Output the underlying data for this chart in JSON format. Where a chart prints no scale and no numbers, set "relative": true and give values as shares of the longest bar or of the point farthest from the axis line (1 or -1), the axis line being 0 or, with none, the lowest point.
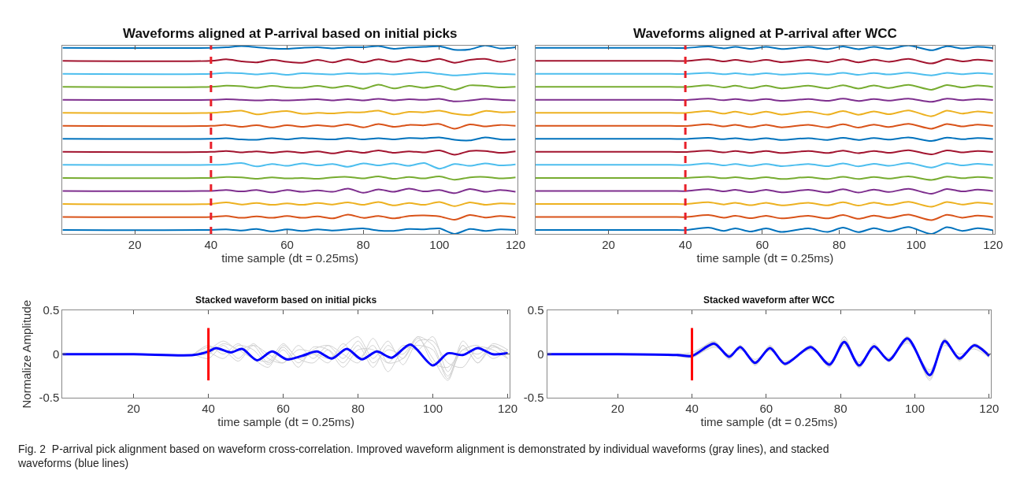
{
  "chart_data": [
    {
      "type": "line",
      "title": "Waveforms aligned at P-arrival based on initial picks",
      "xlabel": "time sample (dt = 0.25ms)",
      "xlim": [
        1,
        120.5
      ],
      "xticks": [
        20,
        40,
        60,
        80,
        100,
        120
      ],
      "relative": true,
      "tick_labels": "x",
      "ref_lines": [
        {
          "axis": "x",
          "value": 40,
          "color": "#e8202a",
          "line_style": "dashed"
        }
      ],
      "x": [
        1,
        40,
        44,
        48,
        52,
        56,
        60,
        64,
        68,
        72,
        76,
        80,
        84,
        88,
        92,
        96,
        100,
        104,
        108,
        112,
        116,
        120
      ],
      "series": [
        {
          "color": "#0072bd",
          "values": [
            0.987,
            0.987,
            0.99,
            0.996,
            0.99,
            0.984,
            0.982,
            0.987,
            0.99,
            0.984,
            0.99,
            0.99,
            0.996,
            0.982,
            0.989,
            0.992,
            0.995,
            0.977,
            0.979,
            1.0,
            0.984,
            0.99
          ]
        },
        {
          "color": "#a2142f",
          "values": [
            0.918,
            0.918,
            0.926,
            0.915,
            0.91,
            0.923,
            0.913,
            0.908,
            0.923,
            0.91,
            0.926,
            0.91,
            0.926,
            0.913,
            0.926,
            0.915,
            0.928,
            0.908,
            0.923,
            0.928,
            0.913,
            0.926
          ]
        },
        {
          "color": "#4dbeee",
          "values": [
            0.849,
            0.849,
            0.854,
            0.852,
            0.846,
            0.852,
            0.844,
            0.852,
            0.849,
            0.846,
            0.852,
            0.849,
            0.851,
            0.846,
            0.852,
            0.857,
            0.849,
            0.841,
            0.846,
            0.852,
            0.849,
            0.846
          ]
        },
        {
          "color": "#77ac30",
          "values": [
            0.78,
            0.78,
            0.786,
            0.783,
            0.775,
            0.785,
            0.777,
            0.775,
            0.785,
            0.775,
            0.785,
            0.77,
            0.792,
            0.772,
            0.785,
            0.775,
            0.785,
            0.765,
            0.788,
            0.785,
            0.777,
            0.78
          ]
        },
        {
          "color": "#7e2f8e",
          "values": [
            0.711,
            0.711,
            0.714,
            0.711,
            0.708,
            0.711,
            0.708,
            0.711,
            0.714,
            0.708,
            0.714,
            0.708,
            0.716,
            0.708,
            0.714,
            0.711,
            0.716,
            0.703,
            0.708,
            0.716,
            0.711,
            0.708
          ]
        },
        {
          "color": "#edb120",
          "values": [
            0.642,
            0.642,
            0.647,
            0.654,
            0.634,
            0.645,
            0.652,
            0.637,
            0.642,
            0.639,
            0.645,
            0.645,
            0.654,
            0.634,
            0.647,
            0.645,
            0.654,
            0.637,
            0.63,
            0.652,
            0.645,
            0.647
          ]
        },
        {
          "color": "#d95319",
          "values": [
            0.573,
            0.573,
            0.578,
            0.568,
            0.576,
            0.565,
            0.576,
            0.568,
            0.576,
            0.57,
            0.581,
            0.565,
            0.583,
            0.568,
            0.578,
            0.576,
            0.583,
            0.558,
            0.581,
            0.57,
            0.578,
            0.573
          ]
        },
        {
          "color": "#0072bd",
          "values": [
            0.504,
            0.504,
            0.507,
            0.501,
            0.499,
            0.507,
            0.501,
            0.509,
            0.504,
            0.501,
            0.509,
            0.501,
            0.507,
            0.501,
            0.509,
            0.507,
            0.512,
            0.499,
            0.496,
            0.512,
            0.501,
            0.501
          ]
        },
        {
          "color": "#a2142f",
          "values": [
            0.435,
            0.435,
            0.44,
            0.432,
            0.438,
            0.43,
            0.438,
            0.43,
            0.438,
            0.427,
            0.44,
            0.43,
            0.443,
            0.43,
            0.438,
            0.432,
            0.443,
            0.42,
            0.44,
            0.44,
            0.43,
            0.438
          ]
        },
        {
          "color": "#4dbeee",
          "values": [
            0.366,
            0.366,
            0.369,
            0.376,
            0.358,
            0.371,
            0.361,
            0.374,
            0.363,
            0.371,
            0.356,
            0.374,
            0.363,
            0.374,
            0.361,
            0.376,
            0.346,
            0.371,
            0.361,
            0.374,
            0.363,
            0.369
          ]
        },
        {
          "color": "#77ac30",
          "values": [
            0.297,
            0.297,
            0.302,
            0.3,
            0.292,
            0.3,
            0.294,
            0.297,
            0.292,
            0.3,
            0.302,
            0.294,
            0.305,
            0.292,
            0.302,
            0.294,
            0.305,
            0.287,
            0.3,
            0.302,
            0.294,
            0.3
          ]
        },
        {
          "color": "#7e2f8e",
          "values": [
            0.228,
            0.228,
            0.233,
            0.225,
            0.233,
            0.22,
            0.233,
            0.223,
            0.231,
            0.223,
            0.24,
            0.218,
            0.236,
            0.223,
            0.24,
            0.225,
            0.233,
            0.216,
            0.238,
            0.223,
            0.233,
            0.223
          ]
        },
        {
          "color": "#edb120",
          "values": [
            0.159,
            0.159,
            0.167,
            0.156,
            0.164,
            0.154,
            0.162,
            0.154,
            0.164,
            0.156,
            0.167,
            0.154,
            0.169,
            0.151,
            0.164,
            0.154,
            0.169,
            0.147,
            0.167,
            0.154,
            0.162,
            0.159
          ]
        },
        {
          "color": "#d95319",
          "values": [
            0.09,
            0.09,
            0.095,
            0.085,
            0.093,
            0.085,
            0.095,
            0.085,
            0.093,
            0.082,
            0.102,
            0.085,
            0.095,
            0.082,
            0.095,
            0.098,
            0.093,
            0.075,
            0.1,
            0.087,
            0.095,
            0.087
          ]
        },
        {
          "color": "#0072bd",
          "values": [
            0.021,
            0.021,
            0.024,
            0.018,
            0.026,
            0.013,
            0.024,
            0.016,
            0.024,
            0.018,
            0.024,
            0.029,
            0.018,
            0.016,
            0.026,
            0.024,
            0.029,
            0.0,
            0.026,
            0.016,
            0.024,
            0.021
          ]
        }
      ]
    },
    {
      "type": "line",
      "title": "Waveforms aligned at P-arrival after WCC",
      "xlabel": "time sample (dt = 0.25ms)",
      "xlim": [
        1,
        120.5
      ],
      "xticks": [
        20,
        40,
        60,
        80,
        100,
        120
      ],
      "relative": true,
      "tick_labels": "x",
      "ref_lines": [
        {
          "axis": "x",
          "value": 40,
          "color": "#e8202a",
          "line_style": "dashed"
        }
      ],
      "x": [
        1,
        36,
        40,
        46,
        50,
        53,
        57,
        61,
        65,
        72,
        77,
        81,
        85,
        89,
        93,
        98,
        104,
        108,
        112,
        116,
        120
      ],
      "series": [
        {
          "color": "#0072bd",
          "values": [
            0.987,
            0.987,
            0.986,
            0.994,
            0.984,
            0.992,
            0.982,
            0.992,
            0.981,
            0.992,
            0.981,
            0.994,
            0.98,
            0.992,
            0.982,
            1.0,
            0.974,
            0.995,
            0.984,
            0.992,
            0.986
          ]
        },
        {
          "color": "#a2142f",
          "values": [
            0.918,
            0.918,
            0.917,
            0.926,
            0.915,
            0.923,
            0.912,
            0.923,
            0.911,
            0.923,
            0.911,
            0.926,
            0.91,
            0.924,
            0.913,
            0.928,
            0.904,
            0.927,
            0.915,
            0.924,
            0.917
          ]
        },
        {
          "color": "#4dbeee",
          "values": [
            0.849,
            0.849,
            0.848,
            0.854,
            0.847,
            0.852,
            0.845,
            0.852,
            0.845,
            0.852,
            0.845,
            0.854,
            0.844,
            0.853,
            0.846,
            0.855,
            0.841,
            0.854,
            0.847,
            0.853,
            0.848
          ]
        },
        {
          "color": "#77ac30",
          "values": [
            0.78,
            0.78,
            0.779,
            0.789,
            0.777,
            0.786,
            0.773,
            0.786,
            0.772,
            0.786,
            0.772,
            0.789,
            0.771,
            0.787,
            0.774,
            0.791,
            0.765,
            0.79,
            0.777,
            0.787,
            0.779
          ]
        },
        {
          "color": "#7e2f8e",
          "values": [
            0.711,
            0.711,
            0.71,
            0.717,
            0.709,
            0.715,
            0.707,
            0.715,
            0.706,
            0.715,
            0.706,
            0.717,
            0.705,
            0.715,
            0.707,
            0.718,
            0.701,
            0.717,
            0.709,
            0.715,
            0.71
          ]
        },
        {
          "color": "#edb120",
          "values": [
            0.642,
            0.642,
            0.641,
            0.652,
            0.638,
            0.649,
            0.634,
            0.649,
            0.633,
            0.649,
            0.633,
            0.652,
            0.632,
            0.65,
            0.635,
            0.655,
            0.624,
            0.654,
            0.638,
            0.65,
            0.641
          ]
        },
        {
          "color": "#d95319",
          "values": [
            0.573,
            0.573,
            0.572,
            0.582,
            0.57,
            0.579,
            0.566,
            0.579,
            0.565,
            0.579,
            0.565,
            0.582,
            0.564,
            0.58,
            0.567,
            0.584,
            0.558,
            0.583,
            0.57,
            0.58,
            0.572
          ]
        },
        {
          "color": "#0072bd",
          "values": [
            0.504,
            0.504,
            0.503,
            0.51,
            0.502,
            0.508,
            0.499,
            0.508,
            0.498,
            0.508,
            0.498,
            0.51,
            0.498,
            0.509,
            0.5,
            0.512,
            0.493,
            0.511,
            0.502,
            0.509,
            0.503
          ]
        },
        {
          "color": "#a2142f",
          "values": [
            0.435,
            0.435,
            0.434,
            0.442,
            0.432,
            0.44,
            0.43,
            0.44,
            0.429,
            0.44,
            0.429,
            0.442,
            0.428,
            0.44,
            0.43,
            0.444,
            0.422,
            0.443,
            0.432,
            0.44,
            0.434
          ]
        },
        {
          "color": "#4dbeee",
          "values": [
            0.366,
            0.366,
            0.365,
            0.374,
            0.363,
            0.371,
            0.36,
            0.371,
            0.359,
            0.371,
            0.359,
            0.374,
            0.358,
            0.372,
            0.361,
            0.376,
            0.352,
            0.375,
            0.363,
            0.372,
            0.365
          ]
        },
        {
          "color": "#77ac30",
          "values": [
            0.297,
            0.297,
            0.296,
            0.303,
            0.295,
            0.301,
            0.292,
            0.301,
            0.291,
            0.301,
            0.291,
            0.303,
            0.291,
            0.302,
            0.293,
            0.305,
            0.286,
            0.304,
            0.295,
            0.302,
            0.296
          ]
        },
        {
          "color": "#7e2f8e",
          "values": [
            0.228,
            0.228,
            0.227,
            0.237,
            0.225,
            0.234,
            0.221,
            0.234,
            0.22,
            0.234,
            0.22,
            0.237,
            0.219,
            0.235,
            0.222,
            0.239,
            0.213,
            0.238,
            0.225,
            0.235,
            0.227
          ]
        },
        {
          "color": "#edb120",
          "values": [
            0.159,
            0.159,
            0.158,
            0.168,
            0.156,
            0.165,
            0.152,
            0.165,
            0.151,
            0.165,
            0.151,
            0.168,
            0.15,
            0.166,
            0.153,
            0.17,
            0.144,
            0.169,
            0.156,
            0.166,
            0.158
          ]
        },
        {
          "color": "#d95319",
          "values": [
            0.09,
            0.09,
            0.089,
            0.1,
            0.086,
            0.096,
            0.083,
            0.096,
            0.082,
            0.096,
            0.082,
            0.1,
            0.08,
            0.097,
            0.084,
            0.102,
            0.073,
            0.101,
            0.086,
            0.097,
            0.089
          ]
        },
        {
          "color": "#0072bd",
          "values": [
            0.021,
            0.021,
            0.02,
            0.033,
            0.016,
            0.029,
            0.012,
            0.029,
            0.01,
            0.029,
            0.01,
            0.033,
            0.009,
            0.03,
            0.013,
            0.036,
            0.0,
            0.035,
            0.016,
            0.03,
            0.019
          ]
        }
      ]
    },
    {
      "type": "line",
      "title": "Stacked waveform based on initial picks",
      "xlabel": "time sample (dt = 0.25ms)",
      "ylabel": "Normalize Amplitude",
      "xlim": [
        1,
        120.5
      ],
      "xticks": [
        20,
        40,
        60,
        80,
        100,
        120
      ],
      "ylim": [
        -0.5,
        0.5
      ],
      "yticks": [
        -0.5,
        0,
        0.5
      ],
      "series": [
        {
          "color": "#d0d0d0",
          "x": [
            36,
            40,
            44,
            48,
            52,
            56,
            60,
            64,
            68,
            72,
            76,
            80,
            84,
            88,
            92,
            96,
            100,
            104,
            108,
            112,
            116,
            120
          ],
          "values": [
            0,
            0.05,
            0.15,
            0.05,
            0.1,
            -0.1,
            0.08,
            -0.1,
            0.05,
            0.1,
            -0.05,
            0.15,
            -0.1,
            0.05,
            0,
            0.2,
            0.1,
            -0.25,
            0.05,
            0,
            0.1,
            0
          ]
        },
        {
          "color": "#d0d0d0",
          "x": [
            36,
            40,
            44,
            48,
            52,
            56,
            60,
            64,
            68,
            72,
            76,
            80,
            84,
            88,
            92,
            96,
            100,
            104,
            108,
            112,
            116,
            120
          ],
          "values": [
            0,
            0.1,
            0,
            0.12,
            -0.05,
            -0.15,
            0.1,
            -0.05,
            -0.1,
            0.05,
            -0.1,
            0.1,
            -0.15,
            0.1,
            -0.05,
            0.18,
            -0.05,
            -0.3,
            0.1,
            -0.1,
            0.12,
            0.05
          ]
        },
        {
          "color": "#d0d0d0",
          "x": [
            36,
            40,
            44,
            48,
            52,
            56,
            60,
            64,
            68,
            72,
            76,
            80,
            84,
            88,
            92,
            96,
            100,
            104,
            108,
            112,
            116,
            120
          ],
          "values": [
            0,
            -0.05,
            0.1,
            -0.05,
            0.12,
            -0.05,
            -0.1,
            0.05,
            0.02,
            -0.05,
            0.08,
            0.2,
            -0.05,
            0.15,
            -0.12,
            0.15,
            0.15,
            -0.1,
            -0.15,
            0.08,
            0.05,
            -0.05
          ]
        },
        {
          "color": "#d0d0d0",
          "x": [
            36,
            40,
            44,
            48,
            52,
            56,
            60,
            64,
            68,
            72,
            76,
            80,
            84,
            88,
            92,
            96,
            100,
            104,
            108,
            112,
            116,
            120
          ],
          "values": [
            0,
            0.02,
            -0.05,
            0.1,
            0.05,
            -0.12,
            0.05,
            -0.15,
            0.08,
            0.05,
            -0.15,
            0.05,
            0.05,
            -0.1,
            0.1,
            0.05,
            0.2,
            -0.2,
            0.1,
            -0.1,
            0.08,
            0.02
          ]
        },
        {
          "color": "#d0d0d0",
          "x": [
            36,
            40,
            44,
            48,
            52,
            56,
            60,
            64,
            68,
            72,
            76,
            80,
            84,
            88,
            92,
            96,
            100,
            104,
            108,
            112,
            116,
            120
          ],
          "values": [
            0,
            0.08,
            0.05,
            -0.08,
            0.1,
            0,
            -0.1,
            0.1,
            -0.05,
            0.1,
            0,
            -0.1,
            0.18,
            -0.1,
            -0.05,
            0.2,
            -0.1,
            -0.15,
            0.05,
            0.1,
            -0.05,
            0.05
          ]
        },
        {
          "color": "#d0d0d0",
          "x": [
            36,
            40,
            44,
            48,
            52,
            56,
            60,
            64,
            68,
            72,
            76,
            80,
            84,
            88,
            92,
            96,
            100,
            104,
            108,
            112,
            116,
            120
          ],
          "values": [
            0,
            0,
            0.12,
            0.05,
            -0.05,
            -0.08,
            0.12,
            -0.05,
            0,
            -0.1,
            0.12,
            -0.05,
            0.1,
            -0.2,
            0.05,
            0.1,
            0.05,
            -0.28,
            0.15,
            -0.05,
            0.1,
            -0.05
          ]
        },
        {
          "color": "#0000ff",
          "x": [
            1,
            20,
            36,
            40,
            42,
            46,
            49,
            53,
            57,
            61,
            65,
            69,
            73,
            77,
            81,
            85,
            89,
            94,
            100,
            104,
            108,
            112,
            116,
            120
          ],
          "values": [
            0,
            0,
            -0.01,
            0.03,
            0.07,
            0.02,
            0.06,
            -0.07,
            0.03,
            -0.06,
            -0.02,
            0.03,
            -0.05,
            0.06,
            -0.06,
            0.03,
            -0.04,
            0.11,
            -0.13,
            0.01,
            -0.01,
            0.07,
            0.0,
            0.01
          ]
        },
        {
          "color": "#ff0000",
          "x": [
            40,
            40
          ],
          "values": [
            -0.3,
            0.3
          ]
        }
      ]
    },
    {
      "type": "line",
      "title": "Stacked waveform after WCC",
      "xlabel": "time sample (dt = 0.25ms)",
      "xlim": [
        1,
        120.5
      ],
      "xticks": [
        20,
        40,
        60,
        80,
        100,
        120
      ],
      "ylim": [
        -0.5,
        0.5
      ],
      "yticks": [
        -0.5,
        0,
        0.5
      ],
      "annotations": [
        "Fig. 2  P-arrival pick alignment based on waveform cross-correlation. Improved waveform alignment is demonstrated by individual waveforms (gray lines), and stacked waveforms (blue lines)"
      ],
      "series": [
        {
          "color": "#d0d0d0",
          "x": [
            36,
            40,
            46,
            50,
            53,
            57,
            61,
            65,
            72,
            77,
            81,
            85,
            89,
            93,
            98,
            104,
            108,
            112,
            116,
            120
          ],
          "values": [
            0,
            0,
            0.15,
            -0.05,
            0.1,
            -0.12,
            0.1,
            -0.12,
            0.1,
            -0.15,
            0.2,
            -0.15,
            0.12,
            -0.08,
            0.2,
            -0.28,
            0.18,
            -0.08,
            0.12,
            0
          ]
        },
        {
          "color": "#d0d0d0",
          "x": [
            36,
            40,
            46,
            50,
            53,
            57,
            61,
            65,
            72,
            77,
            81,
            85,
            89,
            93,
            98,
            104,
            108,
            112,
            116,
            120
          ],
          "values": [
            -0.02,
            -0.04,
            0.1,
            -0.02,
            0.06,
            -0.08,
            0.05,
            -0.1,
            0.06,
            -0.1,
            0.12,
            -0.1,
            0.07,
            -0.05,
            0.15,
            -0.2,
            0.12,
            -0.03,
            0.08,
            -0.03
          ]
        },
        {
          "color": "#d0d0d0",
          "x": [
            36,
            40,
            46,
            50,
            53,
            57,
            61,
            65,
            72,
            77,
            81,
            85,
            89,
            93,
            98,
            104,
            108,
            112,
            116,
            120
          ],
          "values": [
            0,
            0.02,
            0.13,
            -0.06,
            0.09,
            -0.13,
            0.08,
            -0.13,
            0.09,
            -0.14,
            0.16,
            -0.16,
            0.1,
            -0.09,
            0.2,
            -0.3,
            0.17,
            -0.07,
            0.11,
            -0.01
          ]
        },
        {
          "color": "#d0d0d0",
          "x": [
            36,
            40,
            46,
            50,
            53,
            57,
            61,
            65,
            72,
            77,
            81,
            85,
            89,
            93,
            98,
            104,
            108,
            112,
            116,
            120
          ],
          "values": [
            -0.01,
            -0.03,
            0.08,
            0,
            0.05,
            -0.06,
            0.04,
            -0.08,
            0.05,
            -0.09,
            0.1,
            -0.09,
            0.06,
            -0.04,
            0.13,
            -0.18,
            0.1,
            0,
            0.06,
            -0.04
          ]
        },
        {
          "color": "#d0d0d0",
          "x": [
            36,
            40,
            46,
            50,
            53,
            57,
            61,
            65,
            72,
            77,
            81,
            85,
            89,
            93,
            98,
            104,
            108,
            112,
            116,
            120
          ],
          "values": [
            0,
            -0.01,
            0.14,
            -0.04,
            0.1,
            -0.11,
            0.09,
            -0.12,
            0.09,
            -0.13,
            0.17,
            -0.14,
            0.1,
            -0.08,
            0.2,
            -0.26,
            0.17,
            -0.06,
            0.12,
            -0.02
          ]
        },
        {
          "color": "#d0d0d0",
          "x": [
            36,
            40,
            46,
            50,
            53,
            57,
            61,
            65,
            72,
            77,
            81,
            85,
            89,
            93,
            98,
            104,
            108,
            112,
            116,
            120
          ],
          "values": [
            -0.02,
            -0.02,
            0.1,
            -0.01,
            0.07,
            -0.09,
            0.06,
            -0.1,
            0.07,
            -0.11,
            0.12,
            -0.12,
            0.08,
            -0.06,
            0.16,
            -0.22,
            0.13,
            -0.04,
            0.09,
            -0.02
          ]
        },
        {
          "color": "#0000ff",
          "x": [
            1,
            20,
            36,
            40,
            46,
            50,
            53,
            57,
            61,
            65,
            72,
            77,
            81,
            85,
            89,
            93,
            98,
            104,
            108,
            112,
            116,
            120
          ],
          "values": [
            0,
            0,
            -0.01,
            -0.02,
            0.12,
            -0.03,
            0.08,
            -0.1,
            0.07,
            -0.11,
            0.08,
            -0.12,
            0.14,
            -0.13,
            0.09,
            -0.07,
            0.18,
            -0.24,
            0.15,
            -0.05,
            0.1,
            -0.02
          ]
        },
        {
          "color": "#ff0000",
          "x": [
            40,
            40
          ],
          "values": [
            -0.3,
            0.3
          ]
        }
      ]
    }
  ]
}
